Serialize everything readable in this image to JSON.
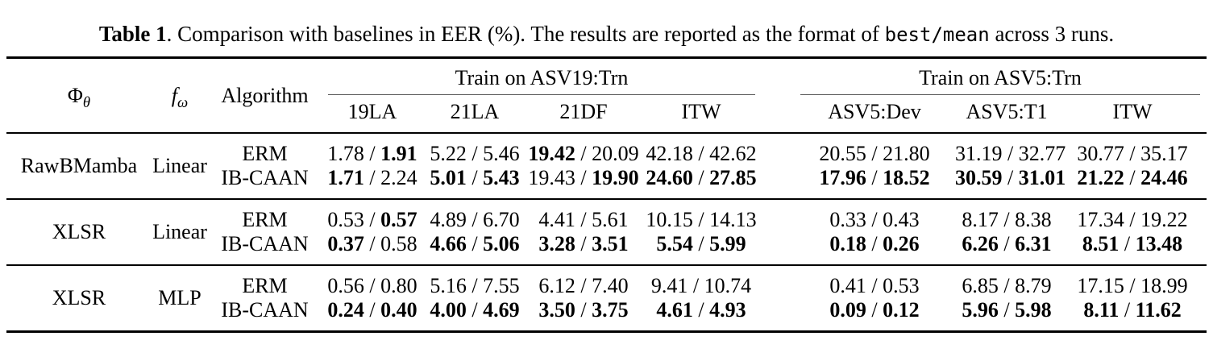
{
  "colors": {
    "background": "#ffffff",
    "text": "#000000",
    "heavy_rule": "#000000",
    "cmid_rule": "#555555"
  },
  "caption": {
    "title": "Table 1",
    "body_before_code": ". Comparison with baselines in EER (%). The results are reported as the format of ",
    "code": "best/mean",
    "body_after_code": " across 3 runs."
  },
  "table": {
    "separator": " / ",
    "header": {
      "phi": {
        "base": "Φ",
        "sub": "θ"
      },
      "f": {
        "base": "f",
        "sub": "ω"
      },
      "algorithm": "Algorithm",
      "group1": "Train on ASV19:Trn",
      "group2": "Train on ASV5:Trn",
      "subheaders": [
        "19LA",
        "21LA",
        "21DF",
        "ITW",
        "ASV5:Dev",
        "ASV5:T1",
        "ITW"
      ]
    },
    "groups": [
      {
        "model": "RawBMamba",
        "classifier": "Linear",
        "rows": [
          {
            "algorithm": "ERM",
            "values": [
              {
                "best": "1.78",
                "best_bold": false,
                "mean": "1.91",
                "mean_bold": true
              },
              {
                "best": "5.22",
                "best_bold": false,
                "mean": "5.46",
                "mean_bold": false
              },
              {
                "best": "19.42",
                "best_bold": true,
                "mean": "20.09",
                "mean_bold": false
              },
              {
                "best": "42.18",
                "best_bold": false,
                "mean": "42.62",
                "mean_bold": false
              },
              {
                "best": "20.55",
                "best_bold": false,
                "mean": "21.80",
                "mean_bold": false
              },
              {
                "best": "31.19",
                "best_bold": false,
                "mean": "32.77",
                "mean_bold": false
              },
              {
                "best": "30.77",
                "best_bold": false,
                "mean": "35.17",
                "mean_bold": false
              }
            ]
          },
          {
            "algorithm": "IB-CAAN",
            "values": [
              {
                "best": "1.71",
                "best_bold": true,
                "mean": "2.24",
                "mean_bold": false
              },
              {
                "best": "5.01",
                "best_bold": true,
                "mean": "5.43",
                "mean_bold": true
              },
              {
                "best": "19.43",
                "best_bold": false,
                "mean": "19.90",
                "mean_bold": true
              },
              {
                "best": "24.60",
                "best_bold": true,
                "mean": "27.85",
                "mean_bold": true
              },
              {
                "best": "17.96",
                "best_bold": true,
                "mean": "18.52",
                "mean_bold": true
              },
              {
                "best": "30.59",
                "best_bold": true,
                "mean": "31.01",
                "mean_bold": true
              },
              {
                "best": "21.22",
                "best_bold": true,
                "mean": "24.46",
                "mean_bold": true
              }
            ]
          }
        ]
      },
      {
        "model": "XLSR",
        "classifier": "Linear",
        "rows": [
          {
            "algorithm": "ERM",
            "values": [
              {
                "best": "0.53",
                "best_bold": false,
                "mean": "0.57",
                "mean_bold": true
              },
              {
                "best": "4.89",
                "best_bold": false,
                "mean": "6.70",
                "mean_bold": false
              },
              {
                "best": "4.41",
                "best_bold": false,
                "mean": "5.61",
                "mean_bold": false
              },
              {
                "best": "10.15",
                "best_bold": false,
                "mean": "14.13",
                "mean_bold": false
              },
              {
                "best": "0.33",
                "best_bold": false,
                "mean": "0.43",
                "mean_bold": false
              },
              {
                "best": "8.17",
                "best_bold": false,
                "mean": "8.38",
                "mean_bold": false
              },
              {
                "best": "17.34",
                "best_bold": false,
                "mean": "19.22",
                "mean_bold": false
              }
            ]
          },
          {
            "algorithm": "IB-CAAN",
            "values": [
              {
                "best": "0.37",
                "best_bold": true,
                "mean": "0.58",
                "mean_bold": false
              },
              {
                "best": "4.66",
                "best_bold": true,
                "mean": "5.06",
                "mean_bold": true
              },
              {
                "best": "3.28",
                "best_bold": true,
                "mean": "3.51",
                "mean_bold": true
              },
              {
                "best": "5.54",
                "best_bold": true,
                "mean": "5.99",
                "mean_bold": true
              },
              {
                "best": "0.18",
                "best_bold": true,
                "mean": "0.26",
                "mean_bold": true
              },
              {
                "best": "6.26",
                "best_bold": true,
                "mean": "6.31",
                "mean_bold": true
              },
              {
                "best": "8.51",
                "best_bold": true,
                "mean": "13.48",
                "mean_bold": true
              }
            ]
          }
        ]
      },
      {
        "model": "XLSR",
        "classifier": "MLP",
        "rows": [
          {
            "algorithm": "ERM",
            "values": [
              {
                "best": "0.56",
                "best_bold": false,
                "mean": "0.80",
                "mean_bold": false
              },
              {
                "best": "5.16",
                "best_bold": false,
                "mean": "7.55",
                "mean_bold": false
              },
              {
                "best": "6.12",
                "best_bold": false,
                "mean": "7.40",
                "mean_bold": false
              },
              {
                "best": "9.41",
                "best_bold": false,
                "mean": "10.74",
                "mean_bold": false
              },
              {
                "best": "0.41",
                "best_bold": false,
                "mean": "0.53",
                "mean_bold": false
              },
              {
                "best": "6.85",
                "best_bold": false,
                "mean": "8.79",
                "mean_bold": false
              },
              {
                "best": "17.15",
                "best_bold": false,
                "mean": "18.99",
                "mean_bold": false
              }
            ]
          },
          {
            "algorithm": "IB-CAAN",
            "values": [
              {
                "best": "0.24",
                "best_bold": true,
                "mean": "0.40",
                "mean_bold": true
              },
              {
                "best": "4.00",
                "best_bold": true,
                "mean": "4.69",
                "mean_bold": true
              },
              {
                "best": "3.50",
                "best_bold": true,
                "mean": "3.75",
                "mean_bold": true
              },
              {
                "best": "4.61",
                "best_bold": true,
                "mean": "4.93",
                "mean_bold": true
              },
              {
                "best": "0.09",
                "best_bold": true,
                "mean": "0.12",
                "mean_bold": true
              },
              {
                "best": "5.96",
                "best_bold": true,
                "mean": "5.98",
                "mean_bold": true
              },
              {
                "best": "8.11",
                "best_bold": true,
                "mean": "11.62",
                "mean_bold": true
              }
            ]
          }
        ]
      }
    ]
  }
}
